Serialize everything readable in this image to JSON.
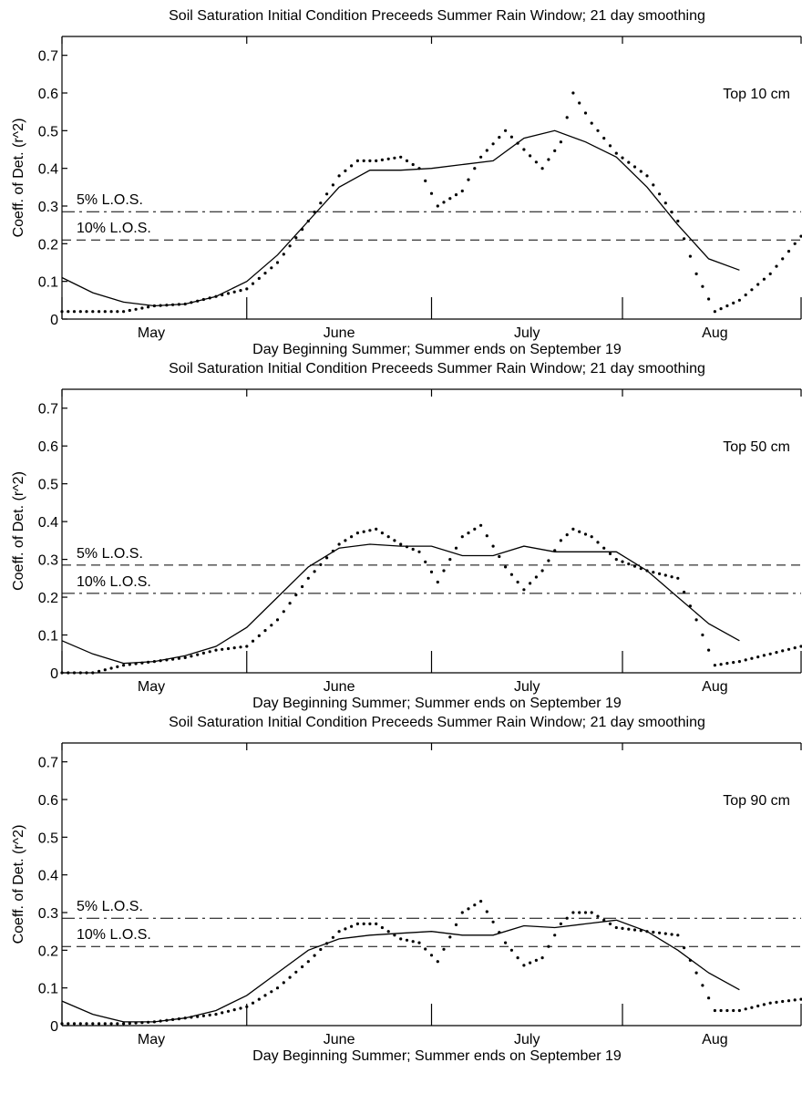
{
  "chart_data": [
    {
      "type": "line",
      "title": "Soil Saturation Initial Condition Preceeds Summer Rain Window; 21 day smoothing",
      "xlabel": "Day Beginning Summer; Summer ends on September 19",
      "ylabel": "Coeff. of Det. (r^2)",
      "annotation": "Top 10 cm",
      "xlim": [
        0,
        120
      ],
      "ylim": [
        0,
        0.75
      ],
      "y_ticks": [
        0,
        0.1,
        0.2,
        0.3,
        0.4,
        0.5,
        0.6,
        0.7
      ],
      "y_tick_labels": [
        "0",
        "0.1",
        "0.2",
        "0.3",
        "0.4",
        "0.5",
        "0.6",
        "0.7"
      ],
      "x_tick_labels": [
        {
          "x": 14.5,
          "label": "May"
        },
        {
          "x": 45,
          "label": "June"
        },
        {
          "x": 75.5,
          "label": "July"
        },
        {
          "x": 106,
          "label": "Aug"
        }
      ],
      "x_major_ticks": [
        0,
        30,
        60,
        91,
        120
      ],
      "grid": false,
      "reference_lines": [
        {
          "label": "5% L.O.S.",
          "y": 0.285,
          "style": "dashdot"
        },
        {
          "label": "10% L.O.S.",
          "y": 0.21,
          "style": "dashed"
        }
      ],
      "series": [
        {
          "style": "solid",
          "x": [
            0,
            5,
            10,
            15,
            20,
            25,
            30,
            35,
            40,
            45,
            50,
            55,
            60,
            65,
            70,
            75,
            80,
            85,
            90,
            95,
            100,
            105,
            110
          ],
          "y": [
            0.11,
            0.07,
            0.045,
            0.035,
            0.04,
            0.06,
            0.1,
            0.17,
            0.26,
            0.35,
            0.395,
            0.395,
            0.4,
            0.41,
            0.42,
            0.48,
            0.5,
            0.47,
            0.43,
            0.35,
            0.25,
            0.16,
            0.13
          ]
        },
        {
          "style": "dotted",
          "x": [
            0,
            5,
            10,
            15,
            20,
            25,
            30,
            35,
            40,
            45,
            48,
            51,
            55,
            58,
            61,
            65,
            68,
            72,
            75,
            78,
            81,
            83,
            86,
            90,
            95,
            100,
            103,
            106,
            110,
            115,
            120
          ],
          "y": [
            0.02,
            0.02,
            0.02,
            0.035,
            0.04,
            0.06,
            0.08,
            0.15,
            0.26,
            0.38,
            0.42,
            0.42,
            0.43,
            0.4,
            0.3,
            0.34,
            0.43,
            0.5,
            0.45,
            0.4,
            0.47,
            0.6,
            0.52,
            0.44,
            0.38,
            0.26,
            0.12,
            0.02,
            0.05,
            0.12,
            0.22
          ]
        }
      ]
    },
    {
      "type": "line",
      "title": "Soil Saturation Initial Condition Preceeds Summer Rain Window; 21 day smoothing",
      "xlabel": "Day Beginning Summer; Summer ends on September 19",
      "ylabel": "Coeff. of Det. (r^2)",
      "annotation": "Top 50 cm",
      "xlim": [
        0,
        120
      ],
      "ylim": [
        0,
        0.75
      ],
      "y_ticks": [
        0,
        0.1,
        0.2,
        0.3,
        0.4,
        0.5,
        0.6,
        0.7
      ],
      "y_tick_labels": [
        "0",
        "0.1",
        "0.2",
        "0.3",
        "0.4",
        "0.5",
        "0.6",
        "0.7"
      ],
      "x_tick_labels": [
        {
          "x": 14.5,
          "label": "May"
        },
        {
          "x": 45,
          "label": "June"
        },
        {
          "x": 75.5,
          "label": "July"
        },
        {
          "x": 106,
          "label": "Aug"
        }
      ],
      "x_major_ticks": [
        0,
        30,
        60,
        91,
        120
      ],
      "grid": false,
      "reference_lines": [
        {
          "label": "5% L.O.S.",
          "y": 0.285,
          "style": "dashed"
        },
        {
          "label": "10% L.O.S.",
          "y": 0.21,
          "style": "dashdot"
        }
      ],
      "series": [
        {
          "style": "solid",
          "x": [
            0,
            5,
            10,
            15,
            20,
            25,
            30,
            35,
            40,
            45,
            50,
            55,
            60,
            65,
            70,
            75,
            80,
            85,
            90,
            95,
            100,
            105,
            110
          ],
          "y": [
            0.085,
            0.05,
            0.025,
            0.03,
            0.045,
            0.07,
            0.12,
            0.2,
            0.28,
            0.33,
            0.34,
            0.335,
            0.335,
            0.31,
            0.31,
            0.335,
            0.32,
            0.32,
            0.32,
            0.27,
            0.2,
            0.13,
            0.085
          ]
        },
        {
          "style": "dotted",
          "x": [
            0,
            5,
            10,
            15,
            20,
            25,
            30,
            35,
            40,
            45,
            48,
            51,
            55,
            58,
            61,
            65,
            68,
            72,
            75,
            78,
            81,
            83,
            86,
            90,
            95,
            100,
            103,
            106,
            110,
            115,
            120
          ],
          "y": [
            0.0,
            0.0,
            0.02,
            0.03,
            0.04,
            0.06,
            0.07,
            0.14,
            0.25,
            0.34,
            0.37,
            0.38,
            0.34,
            0.32,
            0.24,
            0.36,
            0.39,
            0.28,
            0.22,
            0.27,
            0.35,
            0.38,
            0.36,
            0.3,
            0.27,
            0.25,
            0.14,
            0.02,
            0.03,
            0.05,
            0.07
          ]
        }
      ]
    },
    {
      "type": "line",
      "title": "Soil Saturation Initial Condition Preceeds Summer Rain Window; 21 day smoothing",
      "xlabel": "Day Beginning Summer; Summer ends on September 19",
      "ylabel": "Coeff. of Det. (r^2)",
      "annotation": "Top 90 cm",
      "xlim": [
        0,
        120
      ],
      "ylim": [
        0,
        0.75
      ],
      "y_ticks": [
        0,
        0.1,
        0.2,
        0.3,
        0.4,
        0.5,
        0.6,
        0.7
      ],
      "y_tick_labels": [
        "0",
        "0.1",
        "0.2",
        "0.3",
        "0.4",
        "0.5",
        "0.6",
        "0.7"
      ],
      "x_tick_labels": [
        {
          "x": 14.5,
          "label": "May"
        },
        {
          "x": 45,
          "label": "June"
        },
        {
          "x": 75.5,
          "label": "July"
        },
        {
          "x": 106,
          "label": "Aug"
        }
      ],
      "x_major_ticks": [
        0,
        30,
        60,
        91,
        120
      ],
      "grid": false,
      "reference_lines": [
        {
          "label": "5% L.O.S.",
          "y": 0.285,
          "style": "dashdot"
        },
        {
          "label": "10% L.O.S.",
          "y": 0.21,
          "style": "dashed"
        }
      ],
      "series": [
        {
          "style": "solid",
          "x": [
            0,
            5,
            10,
            15,
            20,
            25,
            30,
            35,
            40,
            45,
            50,
            55,
            60,
            65,
            70,
            75,
            80,
            85,
            90,
            95,
            100,
            105,
            110
          ],
          "y": [
            0.065,
            0.03,
            0.01,
            0.01,
            0.02,
            0.04,
            0.08,
            0.14,
            0.2,
            0.23,
            0.24,
            0.245,
            0.25,
            0.24,
            0.24,
            0.265,
            0.26,
            0.27,
            0.28,
            0.25,
            0.2,
            0.14,
            0.095
          ]
        },
        {
          "style": "dotted",
          "x": [
            0,
            5,
            10,
            15,
            20,
            25,
            30,
            35,
            40,
            45,
            48,
            51,
            55,
            58,
            61,
            65,
            68,
            72,
            75,
            78,
            81,
            83,
            86,
            90,
            95,
            100,
            103,
            106,
            110,
            115,
            120
          ],
          "y": [
            0.005,
            0.005,
            0.005,
            0.01,
            0.02,
            0.03,
            0.05,
            0.1,
            0.17,
            0.25,
            0.27,
            0.27,
            0.23,
            0.22,
            0.17,
            0.3,
            0.33,
            0.22,
            0.16,
            0.18,
            0.27,
            0.3,
            0.3,
            0.26,
            0.25,
            0.24,
            0.14,
            0.04,
            0.04,
            0.06,
            0.07
          ]
        }
      ]
    }
  ]
}
